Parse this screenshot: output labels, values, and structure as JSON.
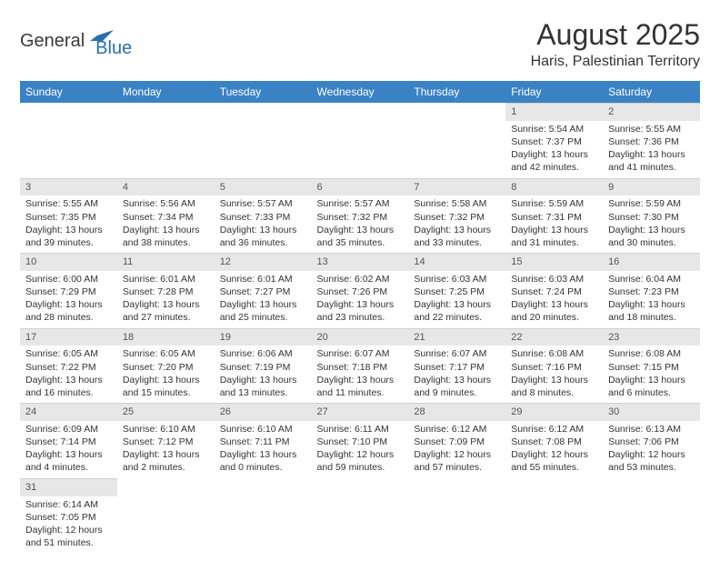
{
  "logo": {
    "general": "General",
    "blue": "Blue"
  },
  "title": "August 2025",
  "location": "Haris, Palestinian Territory",
  "colors": {
    "header_bg": "#3b82c4",
    "header_text": "#ffffff",
    "daynum_bg": "#e7e7e7",
    "text": "#333333",
    "logo_gray": "#3a3a3a",
    "logo_blue": "#2b6fb0"
  },
  "weekdays": [
    "Sunday",
    "Monday",
    "Tuesday",
    "Wednesday",
    "Thursday",
    "Friday",
    "Saturday"
  ],
  "weeks": [
    [
      null,
      null,
      null,
      null,
      null,
      {
        "n": "1",
        "sr": "Sunrise: 5:54 AM",
        "ss": "Sunset: 7:37 PM",
        "dl1": "Daylight: 13 hours",
        "dl2": "and 42 minutes."
      },
      {
        "n": "2",
        "sr": "Sunrise: 5:55 AM",
        "ss": "Sunset: 7:36 PM",
        "dl1": "Daylight: 13 hours",
        "dl2": "and 41 minutes."
      }
    ],
    [
      {
        "n": "3",
        "sr": "Sunrise: 5:55 AM",
        "ss": "Sunset: 7:35 PM",
        "dl1": "Daylight: 13 hours",
        "dl2": "and 39 minutes."
      },
      {
        "n": "4",
        "sr": "Sunrise: 5:56 AM",
        "ss": "Sunset: 7:34 PM",
        "dl1": "Daylight: 13 hours",
        "dl2": "and 38 minutes."
      },
      {
        "n": "5",
        "sr": "Sunrise: 5:57 AM",
        "ss": "Sunset: 7:33 PM",
        "dl1": "Daylight: 13 hours",
        "dl2": "and 36 minutes."
      },
      {
        "n": "6",
        "sr": "Sunrise: 5:57 AM",
        "ss": "Sunset: 7:32 PM",
        "dl1": "Daylight: 13 hours",
        "dl2": "and 35 minutes."
      },
      {
        "n": "7",
        "sr": "Sunrise: 5:58 AM",
        "ss": "Sunset: 7:32 PM",
        "dl1": "Daylight: 13 hours",
        "dl2": "and 33 minutes."
      },
      {
        "n": "8",
        "sr": "Sunrise: 5:59 AM",
        "ss": "Sunset: 7:31 PM",
        "dl1": "Daylight: 13 hours",
        "dl2": "and 31 minutes."
      },
      {
        "n": "9",
        "sr": "Sunrise: 5:59 AM",
        "ss": "Sunset: 7:30 PM",
        "dl1": "Daylight: 13 hours",
        "dl2": "and 30 minutes."
      }
    ],
    [
      {
        "n": "10",
        "sr": "Sunrise: 6:00 AM",
        "ss": "Sunset: 7:29 PM",
        "dl1": "Daylight: 13 hours",
        "dl2": "and 28 minutes."
      },
      {
        "n": "11",
        "sr": "Sunrise: 6:01 AM",
        "ss": "Sunset: 7:28 PM",
        "dl1": "Daylight: 13 hours",
        "dl2": "and 27 minutes."
      },
      {
        "n": "12",
        "sr": "Sunrise: 6:01 AM",
        "ss": "Sunset: 7:27 PM",
        "dl1": "Daylight: 13 hours",
        "dl2": "and 25 minutes."
      },
      {
        "n": "13",
        "sr": "Sunrise: 6:02 AM",
        "ss": "Sunset: 7:26 PM",
        "dl1": "Daylight: 13 hours",
        "dl2": "and 23 minutes."
      },
      {
        "n": "14",
        "sr": "Sunrise: 6:03 AM",
        "ss": "Sunset: 7:25 PM",
        "dl1": "Daylight: 13 hours",
        "dl2": "and 22 minutes."
      },
      {
        "n": "15",
        "sr": "Sunrise: 6:03 AM",
        "ss": "Sunset: 7:24 PM",
        "dl1": "Daylight: 13 hours",
        "dl2": "and 20 minutes."
      },
      {
        "n": "16",
        "sr": "Sunrise: 6:04 AM",
        "ss": "Sunset: 7:23 PM",
        "dl1": "Daylight: 13 hours",
        "dl2": "and 18 minutes."
      }
    ],
    [
      {
        "n": "17",
        "sr": "Sunrise: 6:05 AM",
        "ss": "Sunset: 7:22 PM",
        "dl1": "Daylight: 13 hours",
        "dl2": "and 16 minutes."
      },
      {
        "n": "18",
        "sr": "Sunrise: 6:05 AM",
        "ss": "Sunset: 7:20 PM",
        "dl1": "Daylight: 13 hours",
        "dl2": "and 15 minutes."
      },
      {
        "n": "19",
        "sr": "Sunrise: 6:06 AM",
        "ss": "Sunset: 7:19 PM",
        "dl1": "Daylight: 13 hours",
        "dl2": "and 13 minutes."
      },
      {
        "n": "20",
        "sr": "Sunrise: 6:07 AM",
        "ss": "Sunset: 7:18 PM",
        "dl1": "Daylight: 13 hours",
        "dl2": "and 11 minutes."
      },
      {
        "n": "21",
        "sr": "Sunrise: 6:07 AM",
        "ss": "Sunset: 7:17 PM",
        "dl1": "Daylight: 13 hours",
        "dl2": "and 9 minutes."
      },
      {
        "n": "22",
        "sr": "Sunrise: 6:08 AM",
        "ss": "Sunset: 7:16 PM",
        "dl1": "Daylight: 13 hours",
        "dl2": "and 8 minutes."
      },
      {
        "n": "23",
        "sr": "Sunrise: 6:08 AM",
        "ss": "Sunset: 7:15 PM",
        "dl1": "Daylight: 13 hours",
        "dl2": "and 6 minutes."
      }
    ],
    [
      {
        "n": "24",
        "sr": "Sunrise: 6:09 AM",
        "ss": "Sunset: 7:14 PM",
        "dl1": "Daylight: 13 hours",
        "dl2": "and 4 minutes."
      },
      {
        "n": "25",
        "sr": "Sunrise: 6:10 AM",
        "ss": "Sunset: 7:12 PM",
        "dl1": "Daylight: 13 hours",
        "dl2": "and 2 minutes."
      },
      {
        "n": "26",
        "sr": "Sunrise: 6:10 AM",
        "ss": "Sunset: 7:11 PM",
        "dl1": "Daylight: 13 hours",
        "dl2": "and 0 minutes."
      },
      {
        "n": "27",
        "sr": "Sunrise: 6:11 AM",
        "ss": "Sunset: 7:10 PM",
        "dl1": "Daylight: 12 hours",
        "dl2": "and 59 minutes."
      },
      {
        "n": "28",
        "sr": "Sunrise: 6:12 AM",
        "ss": "Sunset: 7:09 PM",
        "dl1": "Daylight: 12 hours",
        "dl2": "and 57 minutes."
      },
      {
        "n": "29",
        "sr": "Sunrise: 6:12 AM",
        "ss": "Sunset: 7:08 PM",
        "dl1": "Daylight: 12 hours",
        "dl2": "and 55 minutes."
      },
      {
        "n": "30",
        "sr": "Sunrise: 6:13 AM",
        "ss": "Sunset: 7:06 PM",
        "dl1": "Daylight: 12 hours",
        "dl2": "and 53 minutes."
      }
    ],
    [
      {
        "n": "31",
        "sr": "Sunrise: 6:14 AM",
        "ss": "Sunset: 7:05 PM",
        "dl1": "Daylight: 12 hours",
        "dl2": "and 51 minutes."
      },
      null,
      null,
      null,
      null,
      null,
      null
    ]
  ]
}
